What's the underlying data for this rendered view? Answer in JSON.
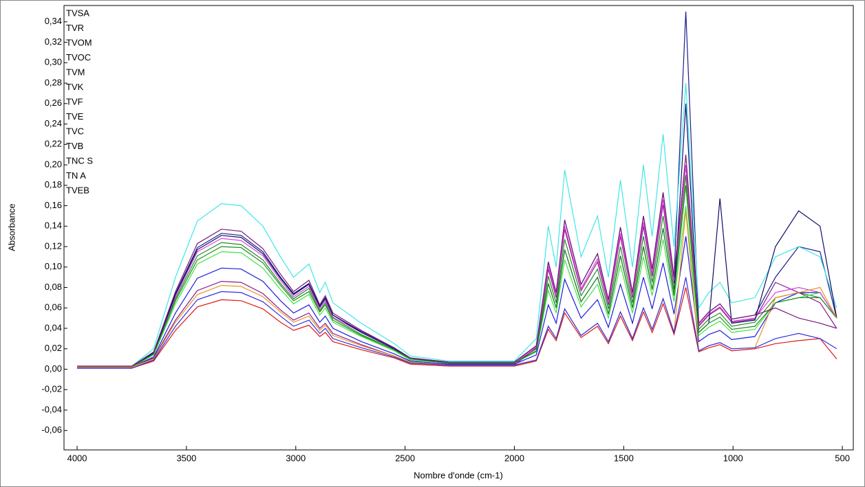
{
  "chart_data": {
    "type": "line",
    "x_label": "Nombre d'onde (cm-1)",
    "y_label": "Absorbance",
    "x": [
      4000,
      3750,
      3650,
      3550,
      3450,
      3340,
      3250,
      3150,
      3070,
      3010,
      2940,
      2890,
      2865,
      2830,
      2700,
      2550,
      2476,
      2300,
      2000,
      1900,
      1845,
      1809,
      1770,
      1695,
      1620,
      1570,
      1515,
      1460,
      1410,
      1370,
      1320,
      1270,
      1216,
      1157,
      1111,
      1060,
      1006,
      900,
      806,
      700,
      602,
      526
    ],
    "xlim": [
      4060,
      450
    ],
    "xticks": [
      4000,
      3500,
      3000,
      2500,
      2000,
      1500,
      1000,
      500
    ],
    "ylim": [
      -0.079,
      0.356
    ],
    "yticks": [
      {
        "value": -0.06,
        "label": "-0,06"
      },
      {
        "value": -0.04,
        "label": "-0,04"
      },
      {
        "value": -0.02,
        "label": "-0,02"
      },
      {
        "value": 0,
        "label": "0,00"
      },
      {
        "value": 0.02,
        "label": "0,02"
      },
      {
        "value": 0.04,
        "label": "0,04"
      },
      {
        "value": 0.06,
        "label": "0,06"
      },
      {
        "value": 0.08,
        "label": "0,08"
      },
      {
        "value": 0.1,
        "label": "0,10"
      },
      {
        "value": 0.12,
        "label": "0,12"
      },
      {
        "value": 0.14,
        "label": "0,14"
      },
      {
        "value": 0.16,
        "label": "0,16"
      },
      {
        "value": 0.18,
        "label": "0,18"
      },
      {
        "value": 0.2,
        "label": "0,20"
      },
      {
        "value": 0.22,
        "label": "0,22"
      },
      {
        "value": 0.24,
        "label": "0,24"
      },
      {
        "value": 0.26,
        "label": "0,26"
      },
      {
        "value": 0.28,
        "label": "0,28"
      },
      {
        "value": 0.3,
        "label": "0,30"
      },
      {
        "value": 0.32,
        "label": "0,32"
      },
      {
        "value": 0.34,
        "label": "0,34"
      }
    ],
    "grid": false,
    "legend": "top-left",
    "series": [
      {
        "name": "TVSA",
        "color": "#1c1c8a",
        "values": [
          0.002,
          0.002,
          0.016,
          0.074,
          0.119,
          0.133,
          0.131,
          0.115,
          0.09,
          0.074,
          0.084,
          0.062,
          0.07,
          0.053,
          0.037,
          0.021,
          0.011,
          0.007,
          0.007,
          0.023,
          0.105,
          0.075,
          0.146,
          0.083,
          0.113,
          0.068,
          0.139,
          0.075,
          0.15,
          0.098,
          0.173,
          0.09,
          0.35,
          0.045,
          0.056,
          0.064,
          0.049,
          0.053,
          0.09,
          0.12,
          0.115,
          0.05
        ]
      },
      {
        "name": "TVR",
        "color": "#238a23",
        "values": [
          0.002,
          0.002,
          0.015,
          0.069,
          0.111,
          0.124,
          0.122,
          0.107,
          0.084,
          0.069,
          0.079,
          0.057,
          0.065,
          0.05,
          0.034,
          0.019,
          0.01,
          0.006,
          0.006,
          0.02,
          0.091,
          0.065,
          0.127,
          0.072,
          0.098,
          0.059,
          0.12,
          0.065,
          0.13,
          0.085,
          0.15,
          0.078,
          0.19,
          0.039,
          0.049,
          0.055,
          0.042,
          0.046,
          0.07,
          0.075,
          0.07,
          0.05
        ]
      },
      {
        "name": "TVOM",
        "color": "#e01414",
        "values": [
          0.001,
          0.001,
          0.008,
          0.038,
          0.061,
          0.068,
          0.067,
          0.059,
          0.046,
          0.038,
          0.043,
          0.032,
          0.036,
          0.027,
          0.019,
          0.011,
          0.005,
          0.003,
          0.003,
          0.008,
          0.039,
          0.028,
          0.055,
          0.031,
          0.042,
          0.025,
          0.052,
          0.028,
          0.056,
          0.036,
          0.064,
          0.034,
          0.08,
          0.017,
          0.021,
          0.024,
          0.018,
          0.02,
          0.025,
          0.028,
          0.03,
          0.01
        ]
      },
      {
        "name": "TVOC",
        "color": "#1a1ae0",
        "values": [
          0.002,
          0.002,
          0.012,
          0.055,
          0.089,
          0.099,
          0.098,
          0.086,
          0.067,
          0.055,
          0.063,
          0.046,
          0.052,
          0.04,
          0.027,
          0.015,
          0.008,
          0.005,
          0.005,
          0.014,
          0.063,
          0.045,
          0.088,
          0.05,
          0.068,
          0.041,
          0.083,
          0.045,
          0.09,
          0.059,
          0.104,
          0.054,
          0.13,
          0.027,
          0.034,
          0.038,
          0.029,
          0.032,
          0.065,
          0.075,
          0.075,
          0.05
        ]
      },
      {
        "name": "TVM",
        "color": "#8c1a8c",
        "values": [
          0.002,
          0.002,
          0.011,
          0.048,
          0.077,
          0.086,
          0.085,
          0.074,
          0.058,
          0.048,
          0.055,
          0.04,
          0.045,
          0.035,
          0.024,
          0.013,
          0.007,
          0.004,
          0.004,
          0.021,
          0.098,
          0.07,
          0.137,
          0.077,
          0.105,
          0.063,
          0.13,
          0.07,
          0.14,
          0.091,
          0.161,
          0.084,
          0.2,
          0.042,
          0.053,
          0.06,
          0.046,
          0.049,
          0.085,
          0.075,
          0.065,
          0.04
        ]
      },
      {
        "name": "TVK",
        "color": "#3ee43e",
        "values": [
          0.002,
          0.002,
          0.014,
          0.064,
          0.103,
          0.115,
          0.114,
          0.099,
          0.078,
          0.064,
          0.073,
          0.053,
          0.06,
          0.046,
          0.032,
          0.018,
          0.009,
          0.006,
          0.006,
          0.017,
          0.077,
          0.055,
          0.107,
          0.061,
          0.083,
          0.05,
          0.102,
          0.055,
          0.11,
          0.072,
          0.127,
          0.066,
          0.16,
          0.033,
          0.041,
          0.047,
          0.036,
          0.039,
          0.065,
          0.07,
          0.075,
          0.05
        ]
      },
      {
        "name": "TVF",
        "color": "#3ee6e6",
        "values": [
          0.003,
          0.003,
          0.02,
          0.09,
          0.145,
          0.162,
          0.16,
          0.14,
          0.11,
          0.09,
          0.103,
          0.075,
          0.085,
          0.065,
          0.045,
          0.025,
          0.013,
          0.008,
          0.008,
          0.03,
          0.14,
          0.1,
          0.195,
          0.11,
          0.15,
          0.09,
          0.185,
          0.1,
          0.2,
          0.13,
          0.23,
          0.12,
          0.28,
          0.06,
          0.075,
          0.085,
          0.065,
          0.07,
          0.11,
          0.12,
          0.11,
          0.06
        ]
      },
      {
        "name": "TVE",
        "color": "#e03ee0",
        "values": [
          0.002,
          0.002,
          0.016,
          0.071,
          0.115,
          0.128,
          0.126,
          0.111,
          0.087,
          0.071,
          0.081,
          0.059,
          0.067,
          0.051,
          0.036,
          0.02,
          0.01,
          0.006,
          0.006,
          0.022,
          0.101,
          0.072,
          0.14,
          0.079,
          0.108,
          0.065,
          0.133,
          0.072,
          0.144,
          0.094,
          0.166,
          0.086,
          0.2,
          0.043,
          0.054,
          0.061,
          0.047,
          0.05,
          0.075,
          0.08,
          0.075,
          0.05
        ]
      },
      {
        "name": "TVC",
        "color": "#0c0c6a",
        "values": [
          0.002,
          0.002,
          0.016,
          0.073,
          0.117,
          0.131,
          0.129,
          0.113,
          0.089,
          0.073,
          0.083,
          0.061,
          0.069,
          0.053,
          0.036,
          0.02,
          0.011,
          0.006,
          0.006,
          0.018,
          0.084,
          0.06,
          0.117,
          0.066,
          0.09,
          0.054,
          0.111,
          0.06,
          0.12,
          0.078,
          0.138,
          0.072,
          0.26,
          0.036,
          0.045,
          0.167,
          0.045,
          0.048,
          0.12,
          0.155,
          0.14,
          0.05
        ]
      },
      {
        "name": "TVB",
        "color": "#1e8c1e",
        "values": [
          0.002,
          0.002,
          0.015,
          0.067,
          0.107,
          0.12,
          0.119,
          0.104,
          0.082,
          0.067,
          0.076,
          0.056,
          0.063,
          0.048,
          0.033,
          0.019,
          0.01,
          0.006,
          0.006,
          0.018,
          0.084,
          0.06,
          0.117,
          0.066,
          0.09,
          0.054,
          0.111,
          0.06,
          0.12,
          0.078,
          0.138,
          0.072,
          0.18,
          0.036,
          0.045,
          0.051,
          0.039,
          0.042,
          0.065,
          0.07,
          0.07,
          0.05
        ]
      },
      {
        "name": "TNC S",
        "color": "#e8961e",
        "values": [
          0.002,
          0.002,
          0.01,
          0.046,
          0.073,
          0.082,
          0.081,
          0.071,
          0.056,
          0.046,
          0.052,
          0.038,
          0.043,
          0.033,
          0.023,
          0.013,
          0.007,
          0.004,
          0.004,
          0.009,
          0.042,
          0.03,
          0.059,
          0.033,
          0.045,
          0.027,
          0.056,
          0.03,
          0.06,
          0.039,
          0.069,
          0.036,
          0.155,
          0.018,
          0.023,
          0.026,
          0.02,
          0.021,
          0.07,
          0.075,
          0.08,
          0.05
        ]
      },
      {
        "name": "TN A",
        "color": "#2e2ee0",
        "values": [
          0.001,
          0.001,
          0.009,
          0.042,
          0.068,
          0.076,
          0.075,
          0.066,
          0.052,
          0.042,
          0.048,
          0.035,
          0.04,
          0.03,
          0.021,
          0.012,
          0.006,
          0.004,
          0.004,
          0.009,
          0.042,
          0.03,
          0.059,
          0.033,
          0.045,
          0.027,
          0.056,
          0.03,
          0.06,
          0.039,
          0.069,
          0.036,
          0.09,
          0.018,
          0.023,
          0.026,
          0.02,
          0.021,
          0.03,
          0.035,
          0.03,
          0.02
        ]
      },
      {
        "name": "TVEB",
        "color": "#781a78",
        "values": [
          0.003,
          0.003,
          0.017,
          0.076,
          0.123,
          0.137,
          0.135,
          0.118,
          0.093,
          0.076,
          0.087,
          0.063,
          0.072,
          0.055,
          0.038,
          0.021,
          0.011,
          0.007,
          0.007,
          0.023,
          0.105,
          0.075,
          0.146,
          0.083,
          0.113,
          0.068,
          0.139,
          0.075,
          0.15,
          0.098,
          0.173,
          0.09,
          0.21,
          0.045,
          0.056,
          0.064,
          0.049,
          0.053,
          0.06,
          0.05,
          0.045,
          0.04
        ]
      }
    ]
  }
}
